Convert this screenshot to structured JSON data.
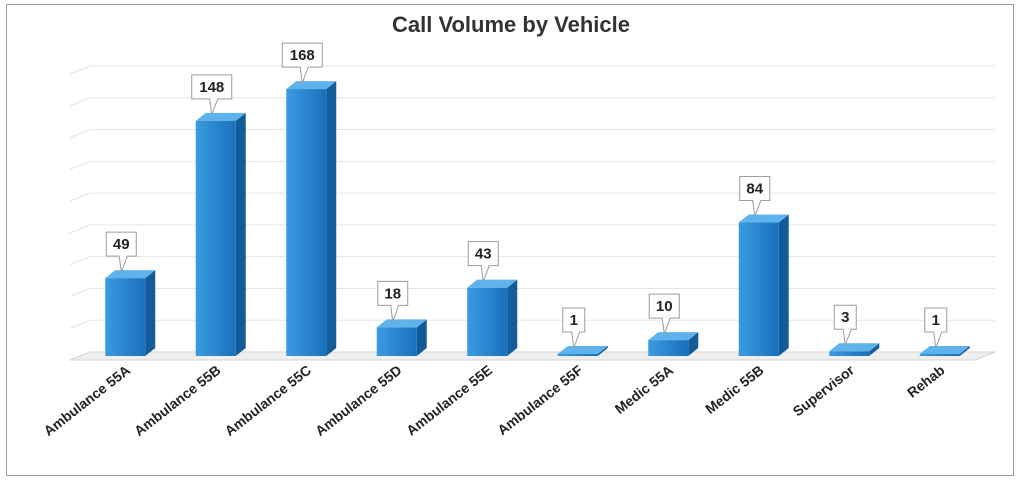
{
  "chart_data": {
    "type": "bar",
    "title": "Call Volume by Vehicle",
    "xlabel": "",
    "ylabel": "",
    "categories": [
      "Ambulance 55A",
      "Ambulance 55B",
      "Ambulance 55C",
      "Ambulance 55D",
      "Ambulance 55E",
      "Ambulance 55F",
      "Medic 55A",
      "Medic 55B",
      "Supervisor",
      "Rehab"
    ],
    "values": [
      49,
      148,
      168,
      18,
      43,
      1,
      10,
      84,
      3,
      1
    ],
    "ylim": [
      0,
      180
    ],
    "grid": true,
    "legend": "none",
    "bar_color": "#1f7fcc"
  }
}
